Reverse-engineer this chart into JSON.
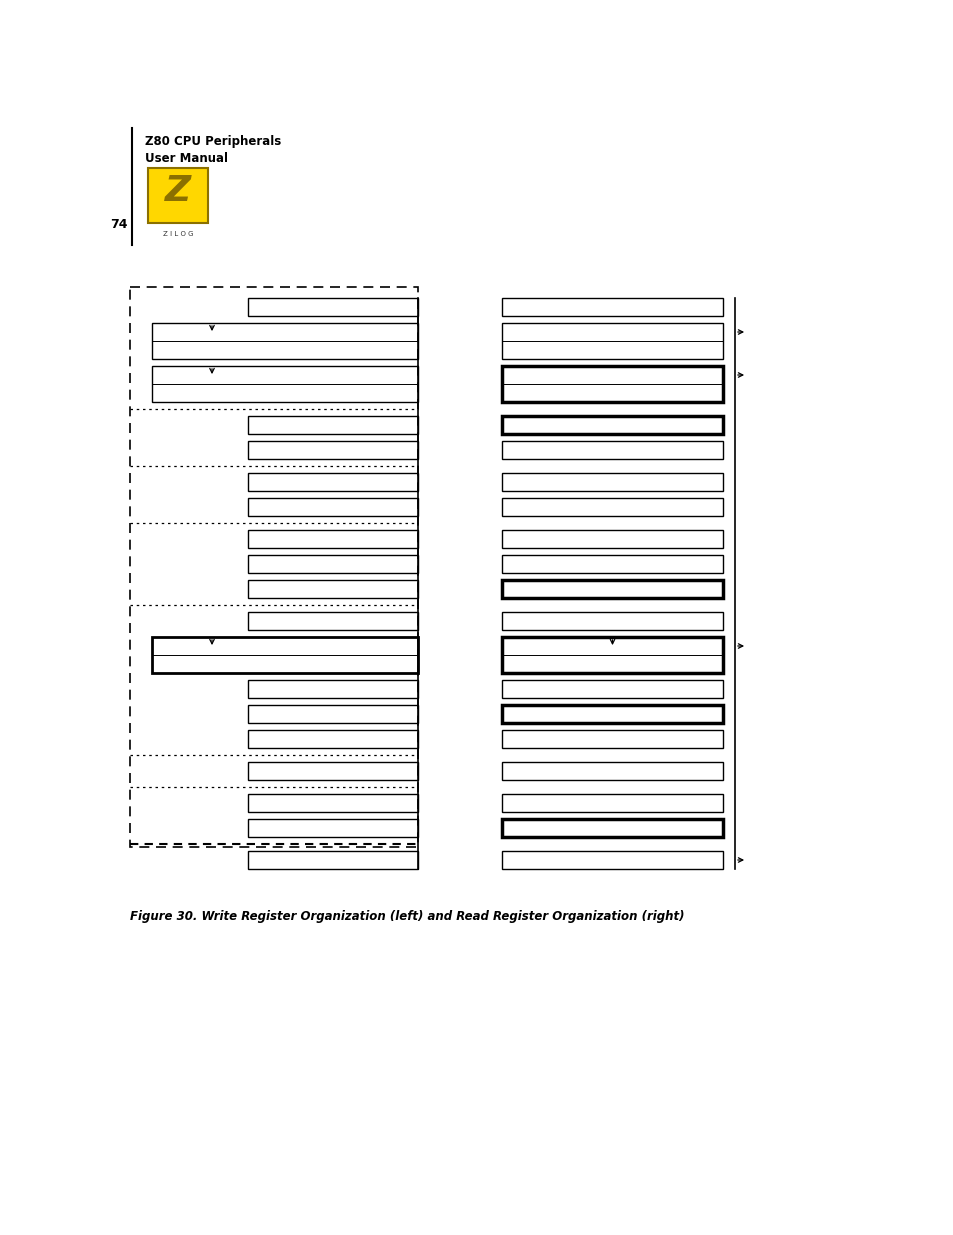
{
  "page_num": "74",
  "title_line1": "Z80 CPU Peripherals",
  "title_line2": "User Manual",
  "figure_caption": "Figure 30. Write Register Organization (left) and Read Register Organization (right)",
  "bg_color": "#ffffff",
  "text_color": "#000000",
  "logo_color": "#FFD700",
  "logo_border": "#8B7000"
}
